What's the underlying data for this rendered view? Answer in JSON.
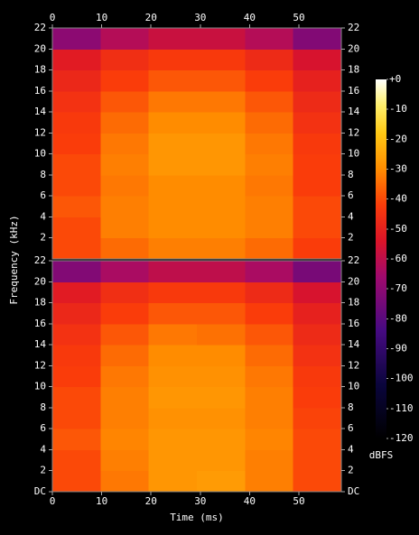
{
  "chart_data": {
    "type": "spectrogram",
    "x_label": "Time (ms)",
    "y_label": "Frequency (kHz)",
    "xlim": [
      0,
      58.6
    ],
    "xticks": [
      0,
      10,
      20,
      30,
      40,
      50
    ],
    "ylim": [
      0,
      22
    ],
    "colorbar": {
      "label": "dBFS",
      "lim": [
        -120,
        0
      ],
      "ticks": [
        {
          "value": 0,
          "label": "+0"
        },
        -10,
        -20,
        -30,
        -40,
        -50,
        -60,
        -70,
        -80,
        -90,
        -100,
        -110,
        -120
      ]
    },
    "channels": [
      {
        "yticks": [
          2,
          4,
          6,
          8,
          10,
          12,
          14,
          16,
          18,
          20,
          22
        ],
        "values": [
          [
            -40,
            -35,
            -32,
            -32,
            -35,
            -42
          ],
          [
            -40,
            -32,
            -30,
            -30,
            -32,
            -40
          ],
          [
            -38,
            -32,
            -30,
            -30,
            -32,
            -40
          ],
          [
            -40,
            -33,
            -30,
            -30,
            -33,
            -42
          ],
          [
            -40,
            -32,
            -28,
            -28,
            -32,
            -42
          ],
          [
            -42,
            -33,
            -28,
            -28,
            -33,
            -43
          ],
          [
            -43,
            -35,
            -30,
            -30,
            -35,
            -45
          ],
          [
            -45,
            -38,
            -33,
            -33,
            -38,
            -47
          ],
          [
            -48,
            -42,
            -38,
            -38,
            -42,
            -50
          ],
          [
            -52,
            -46,
            -43,
            -43,
            -47,
            -55
          ],
          [
            -70,
            -62,
            -58,
            -58,
            -62,
            -72
          ]
        ]
      },
      {
        "yticks": [
          {
            "value": 0,
            "label": "DC"
          },
          2,
          4,
          6,
          8,
          10,
          12,
          14,
          16,
          18,
          20,
          22
        ],
        "values": [
          [
            -40,
            -33,
            -28,
            -27,
            -32,
            -40
          ],
          [
            -40,
            -32,
            -28,
            -28,
            -32,
            -40
          ],
          [
            -38,
            -31,
            -28,
            -28,
            -31,
            -40
          ],
          [
            -40,
            -32,
            -29,
            -29,
            -32,
            -41
          ],
          [
            -40,
            -32,
            -28,
            -28,
            -32,
            -42
          ],
          [
            -42,
            -33,
            -29,
            -29,
            -33,
            -43
          ],
          [
            -43,
            -35,
            -30,
            -30,
            -35,
            -45
          ],
          [
            -45,
            -38,
            -33,
            -34,
            -38,
            -47
          ],
          [
            -48,
            -42,
            -38,
            -38,
            -42,
            -50
          ],
          [
            -52,
            -46,
            -43,
            -43,
            -47,
            -55
          ],
          [
            -72,
            -64,
            -60,
            -60,
            -64,
            -74
          ]
        ]
      }
    ]
  }
}
